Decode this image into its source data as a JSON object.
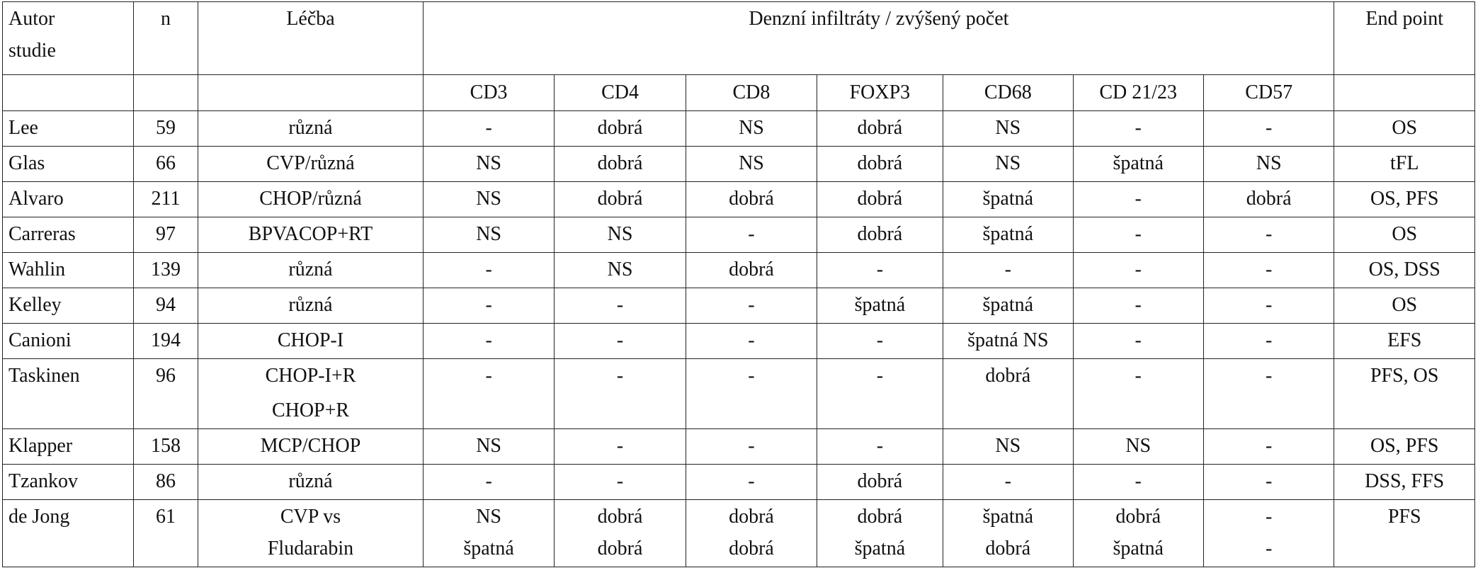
{
  "header": {
    "row1": [
      [
        "Autor",
        "studie"
      ],
      "n",
      "Léčba",
      "Denzní infiltráty / zvýšený počet",
      "End point"
    ],
    "row2": [
      "CD3",
      "CD4",
      "CD8",
      "FOXP3",
      "CD68",
      "CD 21/23",
      "CD57"
    ]
  },
  "rows": [
    [
      "Lee",
      "59",
      "různá",
      "-",
      "dobrá",
      "NS",
      "dobrá",
      "NS",
      "-",
      "-",
      "OS"
    ],
    [
      "Glas",
      "66",
      "CVP/různá",
      "NS",
      "dobrá",
      "NS",
      "dobrá",
      "NS",
      "špatná",
      "NS",
      "tFL"
    ],
    [
      "Alvaro",
      "211",
      "CHOP/různá",
      "NS",
      "dobrá",
      "dobrá",
      "dobrá",
      "špatná",
      "-",
      "dobrá",
      "OS, PFS"
    ],
    [
      "Carreras",
      "97",
      "BPVACOP+RT",
      "NS",
      "NS",
      "-",
      "dobrá",
      "špatná",
      "-",
      "-",
      "OS"
    ],
    [
      "Wahlin",
      "139",
      "různá",
      "-",
      "NS",
      "dobrá",
      "-",
      "-",
      "-",
      "-",
      "OS, DSS"
    ],
    [
      "Kelley",
      "94",
      "různá",
      "-",
      "-",
      "-",
      "špatná",
      "špatná",
      "-",
      "-",
      "OS"
    ],
    [
      "Canioni",
      "194",
      "CHOP-I",
      "-",
      "-",
      "-",
      "-",
      "špatná NS",
      "-",
      "-",
      "EFS"
    ],
    [
      "Taskinen",
      "96",
      "CHOP-I+R",
      "-",
      "-",
      "-",
      "-",
      "dobrá",
      "-",
      "-",
      "PFS, OS"
    ],
    [
      null,
      null,
      "CHOP+R",
      null,
      null,
      null,
      null,
      null,
      null,
      null,
      null
    ],
    [
      "Klapper",
      "158",
      "MCP/CHOP",
      "NS",
      "-",
      "-",
      "-",
      "NS",
      "NS",
      "-",
      "OS, PFS"
    ],
    [
      "Tzankov",
      "86",
      "různá",
      "-",
      "-",
      "-",
      "dobrá",
      "-",
      "-",
      "-",
      "DSS, FFS"
    ],
    [
      "de Jong",
      "61",
      [
        "CVP vs",
        "Fludarabin"
      ],
      [
        "NS",
        "špatná"
      ],
      [
        "dobrá",
        "dobrá"
      ],
      [
        "dobrá",
        "dobrá"
      ],
      [
        "dobrá",
        "špatná"
      ],
      [
        "špatná",
        "dobrá"
      ],
      [
        "dobrá",
        "špatná"
      ],
      [
        "-",
        "-"
      ],
      "PFS"
    ]
  ]
}
